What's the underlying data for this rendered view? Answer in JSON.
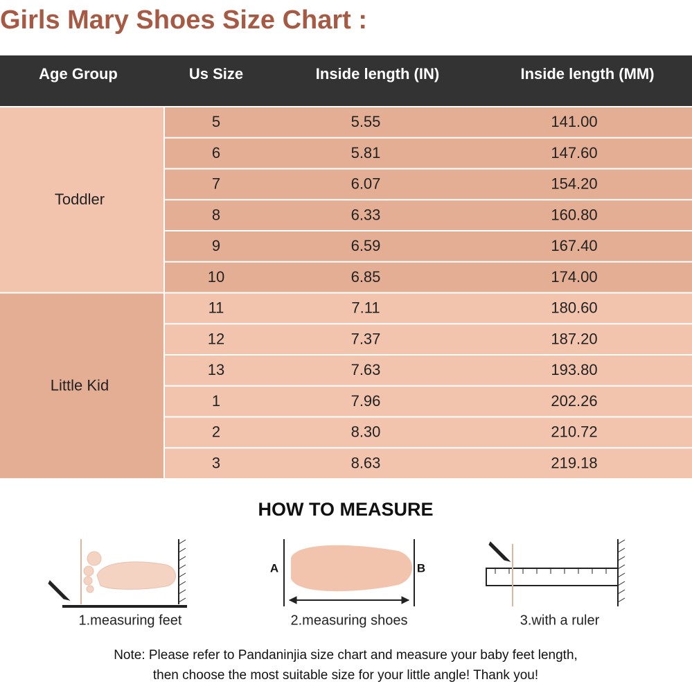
{
  "title": "Girls Mary Shoes Size Chart :",
  "table": {
    "columns": [
      "Age Group",
      "Us Size",
      "Inside length (IN)",
      "Inside length (MM)"
    ],
    "groups": [
      {
        "label": "Toddler",
        "rows": [
          [
            "5",
            "5.55",
            "141.00"
          ],
          [
            "6",
            "5.81",
            "147.60"
          ],
          [
            "7",
            "6.07",
            "154.20"
          ],
          [
            "8",
            "6.33",
            "160.80"
          ],
          [
            "9",
            "6.59",
            "167.40"
          ],
          [
            "10",
            "6.85",
            "174.00"
          ]
        ]
      },
      {
        "label": "Little Kid",
        "rows": [
          [
            "11",
            "7.11",
            "180.60"
          ],
          [
            "12",
            "7.37",
            "187.20"
          ],
          [
            "13",
            "7.63",
            "193.80"
          ],
          [
            "1",
            "7.96",
            "202.26"
          ],
          [
            "2",
            "8.30",
            "210.72"
          ],
          [
            "3",
            "8.63",
            "219.18"
          ]
        ]
      }
    ]
  },
  "measure": {
    "heading": "HOW TO MEASURE",
    "steps": [
      "1.measuring feet",
      "2.measuring shoes",
      "3.with a ruler"
    ],
    "shoe_ends": [
      "A",
      "B"
    ]
  },
  "note": [
    "Note: Please refer to Pandaninjia size chart and measure your baby feet length,",
    "then choose the most suitable size for your little angle! Thank you!"
  ]
}
